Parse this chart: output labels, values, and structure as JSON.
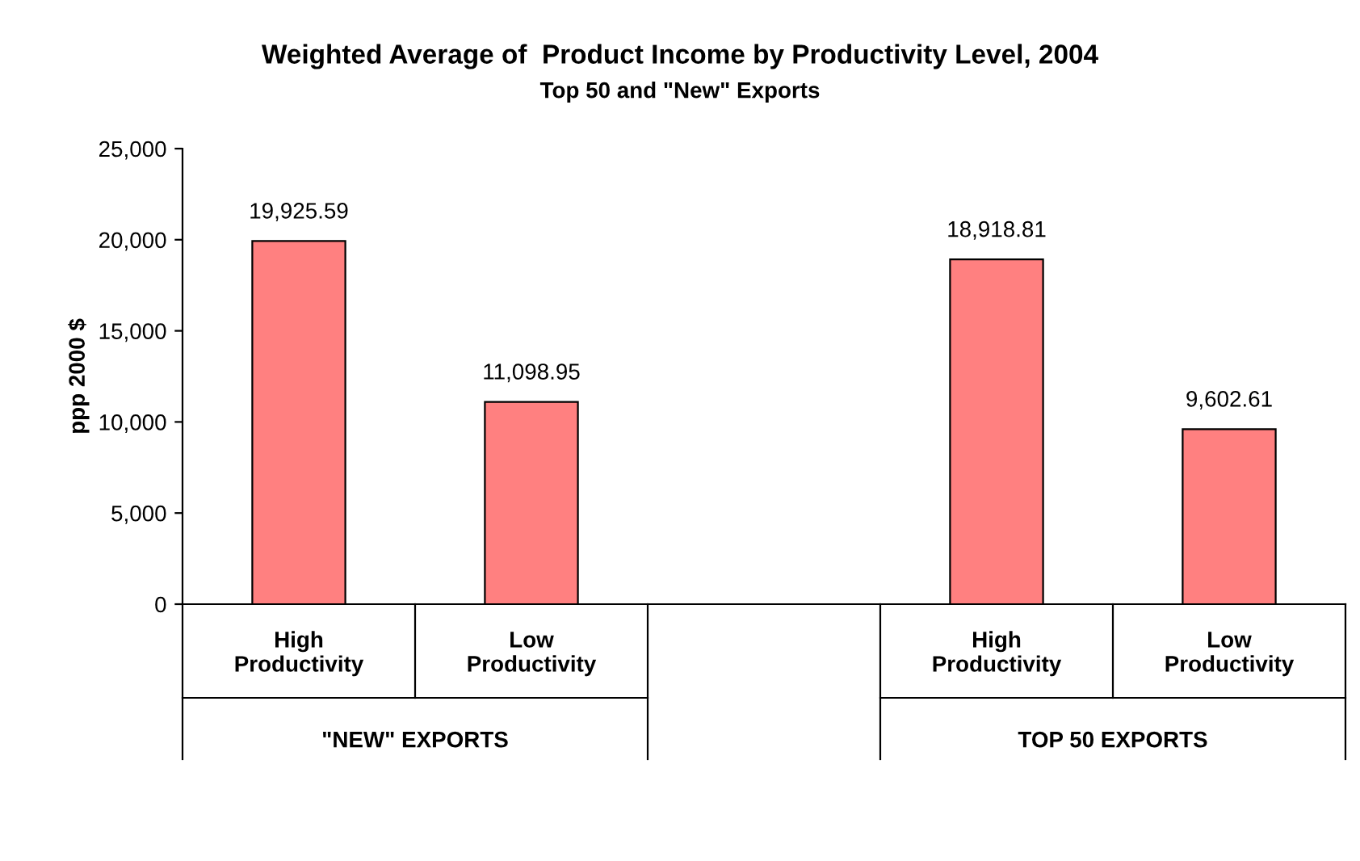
{
  "chart_data": {
    "type": "bar",
    "title": "Weighted Average of  Product Income by Productivity Level, 2004",
    "subtitle": "Top 50 and \"New\" Exports",
    "ylabel": "ppp 2000 $",
    "categories": [
      "High\nProductivity",
      "Low\nProductivity",
      null,
      "High\nProductivity",
      "Low\nProductivity"
    ],
    "values": [
      19925.59,
      11098.95,
      null,
      18918.81,
      9602.61
    ],
    "value_labels": [
      "19,925.59",
      "11,098.95",
      null,
      "18,918.81",
      "9,602.61"
    ],
    "color": "#ff8080",
    "ylim": [
      0,
      25000
    ],
    "yticks": [
      0,
      {
        "value": 5000,
        "label": "5,000"
      },
      {
        "value": 10000,
        "label": "10,000"
      },
      {
        "value": 15000,
        "label": "15,000"
      },
      {
        "value": 20000,
        "label": "20,000"
      },
      {
        "value": 25000,
        "label": "25,000"
      }
    ],
    "grid": false,
    "legend": false,
    "annotations": [
      "\"NEW\" EXPORTS",
      "TOP 50 EXPORTS"
    ]
  }
}
